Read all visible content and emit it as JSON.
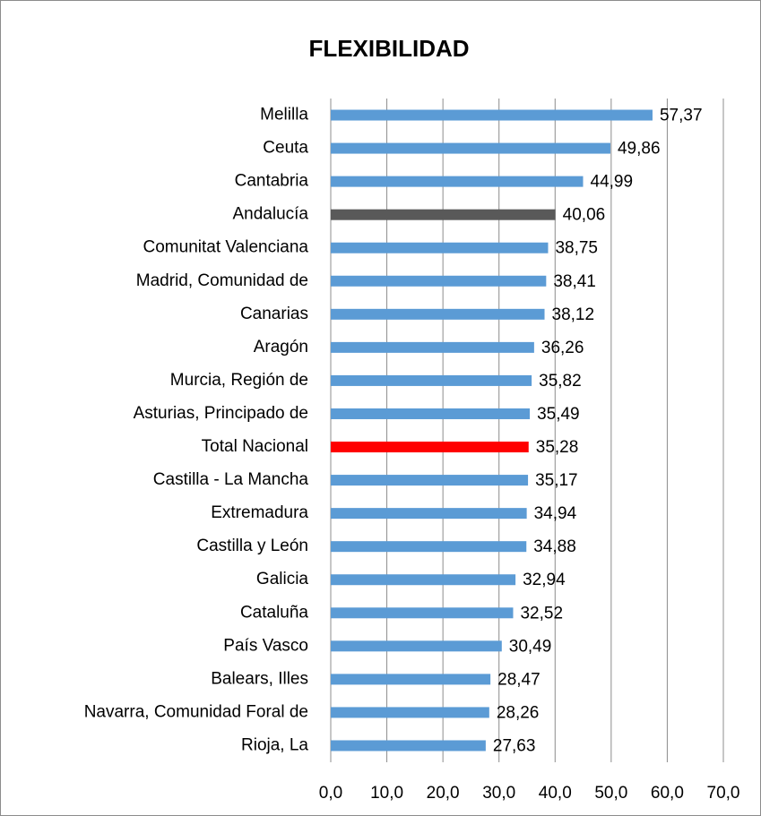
{
  "chart_data": {
    "type": "bar",
    "orientation": "horizontal",
    "title": "FLEXIBILIDAD",
    "categories": [
      "Melilla",
      "Ceuta",
      "Cantabria",
      "Andalucía",
      "Comunitat Valenciana",
      "Madrid, Comunidad de",
      "Canarias",
      "Aragón",
      "Murcia, Región de",
      "Asturias, Principado de",
      "Total Nacional",
      "Castilla - La Mancha",
      "Extremadura",
      "Castilla y León",
      "Galicia",
      "Cataluña",
      "País Vasco",
      "Balears, Illes",
      "Navarra, Comunidad Foral de",
      "Rioja, La"
    ],
    "values": [
      57.37,
      49.86,
      44.99,
      40.06,
      38.75,
      38.41,
      38.12,
      36.26,
      35.82,
      35.49,
      35.28,
      35.17,
      34.94,
      34.88,
      32.94,
      32.52,
      30.49,
      28.47,
      28.26,
      27.63
    ],
    "value_labels": [
      "57,37",
      "49,86",
      "44,99",
      "40,06",
      "38,75",
      "38,41",
      "38,12",
      "36,26",
      "35,82",
      "35,49",
      "35,28",
      "35,17",
      "34,94",
      "34,88",
      "32,94",
      "32,52",
      "30,49",
      "28,47",
      "28,26",
      "27,63"
    ],
    "colors": [
      "#5b9bd5",
      "#5b9bd5",
      "#5b9bd5",
      "#595959",
      "#5b9bd5",
      "#5b9bd5",
      "#5b9bd5",
      "#5b9bd5",
      "#5b9bd5",
      "#5b9bd5",
      "#ff0000",
      "#5b9bd5",
      "#5b9bd5",
      "#5b9bd5",
      "#5b9bd5",
      "#5b9bd5",
      "#5b9bd5",
      "#5b9bd5",
      "#5b9bd5",
      "#5b9bd5"
    ],
    "xlim": [
      0,
      70
    ],
    "xticks": [
      {
        "value": 0,
        "label": "0,0"
      },
      {
        "value": 10,
        "label": "10,0"
      },
      {
        "value": 20,
        "label": "20,0"
      },
      {
        "value": 30,
        "label": "30,0"
      },
      {
        "value": 40,
        "label": "40,0"
      },
      {
        "value": 50,
        "label": "50,0"
      },
      {
        "value": 60,
        "label": "60,0"
      },
      {
        "value": 70,
        "label": "70,0"
      }
    ],
    "grid": true
  }
}
